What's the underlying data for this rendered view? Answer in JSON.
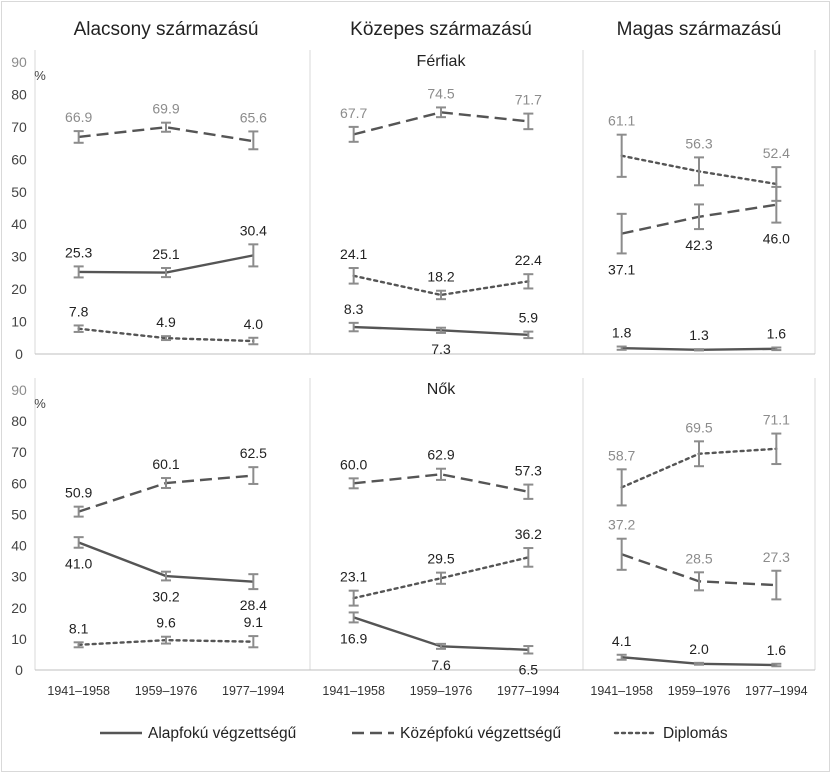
{
  "chart_data": {
    "type": "line",
    "categories": [
      "1941–1958",
      "1959–1976",
      "1977–1994"
    ],
    "y_axis": {
      "unit": "%",
      "ylim": [
        0,
        90
      ],
      "ticks": [
        0,
        10,
        20,
        30,
        40,
        50,
        60,
        70,
        80,
        90
      ]
    },
    "column_titles": [
      "Alacsony származású",
      "Közepes származású",
      "Magas származású"
    ],
    "row_titles": [
      "Férfiak",
      "Nők"
    ],
    "legend": {
      "position": "bottom",
      "entries": [
        "Alapfokú végzettségű",
        "Középfokú végzettségű",
        "Diplomás"
      ]
    },
    "panels": [
      {
        "row": 0,
        "col": 0,
        "series": [
          {
            "name": "Alapfokú végzettségű",
            "values": [
              25.3,
              25.1,
              30.4
            ],
            "ci": [
              [
                23.6,
                27.0
              ],
              [
                23.7,
                26.5
              ],
              [
                27.0,
                33.8
              ]
            ],
            "labels": [
              "25.3",
              "25.1",
              "30.4"
            ]
          },
          {
            "name": "Középfokú végzettségű",
            "values": [
              66.9,
              69.9,
              65.6
            ],
            "ci": [
              [
                65.1,
                68.7
              ],
              [
                68.5,
                71.3
              ],
              [
                63.1,
                68.6
              ]
            ],
            "labels": [
              "66.9",
              "69.9",
              "65.6"
            ]
          },
          {
            "name": "Diplomás",
            "values": [
              7.8,
              4.9,
              4.0
            ],
            "ci": [
              [
                6.8,
                8.8
              ],
              [
                4.3,
                5.5
              ],
              [
                3.0,
                5.0
              ]
            ],
            "labels": [
              "7.8",
              "4.9",
              "4.0"
            ]
          }
        ]
      },
      {
        "row": 0,
        "col": 1,
        "series": [
          {
            "name": "Alapfokú végzettségű",
            "values": [
              8.3,
              7.3,
              5.9
            ],
            "ci": [
              [
                7.0,
                9.6
              ],
              [
                6.5,
                8.1
              ],
              [
                4.9,
                6.9
              ]
            ],
            "labels": [
              "8.3",
              "7.3",
              "5.9"
            ]
          },
          {
            "name": "Középfokú végzettségű",
            "values": [
              67.7,
              74.5,
              71.7
            ],
            "ci": [
              [
                65.4,
                70.0
              ],
              [
                73.0,
                76.0
              ],
              [
                69.3,
                74.1
              ]
            ],
            "labels": [
              "67.7",
              "74.5",
              "71.7"
            ]
          },
          {
            "name": "Diplomás",
            "values": [
              24.1,
              18.2,
              22.4
            ],
            "ci": [
              [
                21.7,
                26.5
              ],
              [
                16.9,
                19.5
              ],
              [
                20.2,
                24.6
              ]
            ],
            "labels": [
              "24.1",
              "18.2",
              "22.4"
            ]
          }
        ]
      },
      {
        "row": 0,
        "col": 2,
        "series": [
          {
            "name": "Alapfokú végzettségű",
            "values": [
              1.8,
              1.3,
              1.6
            ],
            "ci": [
              [
                1.3,
                2.3
              ],
              [
                1.1,
                1.5
              ],
              [
                1.2,
                2.0
              ]
            ],
            "labels": [
              "1.8",
              "1.3",
              "1.6"
            ]
          },
          {
            "name": "Középfokú végzettségű",
            "values": [
              37.1,
              42.3,
              46.0
            ],
            "ci": [
              [
                31.0,
                43.2
              ],
              [
                38.5,
                46.1
              ],
              [
                40.5,
                51.5
              ]
            ],
            "labels": [
              "37.1",
              "42.3",
              "46.0"
            ]
          },
          {
            "name": "Diplomás",
            "values": [
              61.1,
              56.3,
              52.4
            ],
            "ci": [
              [
                54.6,
                67.6
              ],
              [
                52.0,
                60.6
              ],
              [
                47.2,
                57.6
              ]
            ],
            "labels": [
              "61.1",
              "56.3",
              "52.4"
            ]
          }
        ]
      },
      {
        "row": 1,
        "col": 0,
        "series": [
          {
            "name": "Alapfokú végzettségű",
            "values": [
              41.0,
              30.2,
              28.4
            ],
            "ci": [
              [
                39.3,
                42.7
              ],
              [
                28.8,
                31.6
              ],
              [
                26.0,
                30.8
              ]
            ],
            "labels": [
              "41.0",
              "30.2",
              "28.4"
            ]
          },
          {
            "name": "Középfokú végzettségű",
            "values": [
              50.9,
              60.1,
              62.5
            ],
            "ci": [
              [
                49.3,
                52.5
              ],
              [
                58.5,
                61.7
              ],
              [
                59.8,
                65.2
              ]
            ],
            "labels": [
              "50.9",
              "60.1",
              "62.5"
            ]
          },
          {
            "name": "Diplomás",
            "values": [
              8.1,
              9.6,
              9.1
            ],
            "ci": [
              [
                7.3,
                8.9
              ],
              [
                8.5,
                10.7
              ],
              [
                7.3,
                10.9
              ]
            ],
            "labels": [
              "8.1",
              "9.6",
              "9.1"
            ]
          }
        ]
      },
      {
        "row": 1,
        "col": 1,
        "series": [
          {
            "name": "Alapfokú végzettségű",
            "values": [
              16.9,
              7.6,
              6.5
            ],
            "ci": [
              [
                15.3,
                18.5
              ],
              [
                6.8,
                8.4
              ],
              [
                5.3,
                7.7
              ]
            ],
            "labels": [
              "16.9",
              "7.6",
              "6.5"
            ]
          },
          {
            "name": "Középfokú végzettségű",
            "values": [
              60.0,
              62.9,
              57.3
            ],
            "ci": [
              [
                58.4,
                61.6
              ],
              [
                61.1,
                64.7
              ],
              [
                55.0,
                59.6
              ]
            ],
            "labels": [
              "60.0",
              "62.9",
              "57.3"
            ]
          },
          {
            "name": "Diplomás",
            "values": [
              23.1,
              29.5,
              36.2
            ],
            "ci": [
              [
                20.7,
                25.5
              ],
              [
                27.7,
                31.3
              ],
              [
                33.2,
                39.2
              ]
            ],
            "labels": [
              "23.1",
              "29.5",
              "36.2"
            ]
          }
        ]
      },
      {
        "row": 1,
        "col": 2,
        "series": [
          {
            "name": "Alapfokú végzettségű",
            "values": [
              4.1,
              2.0,
              1.6
            ],
            "ci": [
              [
                3.3,
                4.9
              ],
              [
                1.7,
                2.3
              ],
              [
                1.2,
                2.0
              ]
            ],
            "labels": [
              "4.1",
              "2.0",
              "1.6"
            ]
          },
          {
            "name": "Középfokú végzettségű",
            "values": [
              37.2,
              28.5,
              27.3
            ],
            "ci": [
              [
                32.2,
                42.2
              ],
              [
                25.6,
                31.4
              ],
              [
                22.7,
                31.9
              ]
            ],
            "labels": [
              "37.2",
              "28.5",
              "27.3"
            ]
          },
          {
            "name": "Diplomás",
            "values": [
              58.7,
              69.5,
              71.1
            ],
            "ci": [
              [
                52.9,
                64.5
              ],
              [
                65.5,
                73.5
              ],
              [
                66.2,
                76.0
              ]
            ],
            "labels": [
              "58.7",
              "69.5",
              "71.1"
            ]
          }
        ]
      }
    ],
    "colors": {
      "Alapfokú végzettségű": "#555555",
      "Középfokú végzettségű": "#555555",
      "Diplomás": "#555555",
      "error_bars": "#8c8c8c",
      "label_dark": "#222222",
      "label_light": "#8c8c8c",
      "grid": "#d9d9d9"
    }
  }
}
